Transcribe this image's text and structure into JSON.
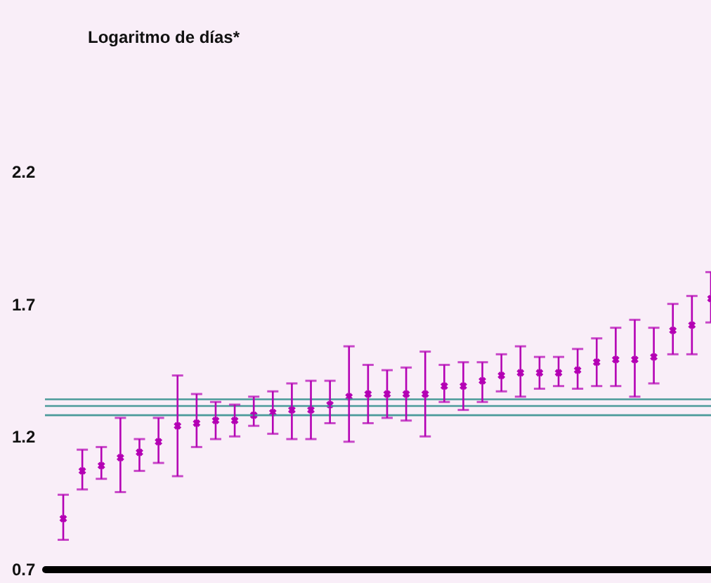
{
  "chart_data": {
    "type": "scatter",
    "title": "Logaritmo de días*",
    "categories": [
      null,
      null,
      null,
      null,
      null,
      null,
      null,
      null,
      null,
      null,
      null,
      null,
      null,
      null,
      null,
      null,
      null,
      null,
      null,
      null,
      null,
      null,
      null,
      null,
      null,
      null,
      null,
      null,
      null,
      null,
      null,
      null,
      null,
      null,
      null
    ],
    "series": [
      {
        "color": "#b400b4",
        "values": [
          0.89,
          1.07,
          1.09,
          1.12,
          1.14,
          1.18,
          1.24,
          1.25,
          1.26,
          1.26,
          1.28,
          1.29,
          1.3,
          1.3,
          1.32,
          1.35,
          1.36,
          1.36,
          1.36,
          1.36,
          1.39,
          1.39,
          1.41,
          1.43,
          1.44,
          1.44,
          1.44,
          1.45,
          1.48,
          1.49,
          1.49,
          1.5,
          1.6,
          1.62,
          1.72
        ],
        "errors": [
          [
            0.81,
            0.98
          ],
          [
            1.0,
            1.15
          ],
          [
            1.04,
            1.16
          ],
          [
            0.99,
            1.27
          ],
          [
            1.07,
            1.19
          ],
          [
            1.1,
            1.27
          ],
          [
            1.05,
            1.43
          ],
          [
            1.16,
            1.36
          ],
          [
            1.19,
            1.33
          ],
          [
            1.2,
            1.32
          ],
          [
            1.24,
            1.35
          ],
          [
            1.21,
            1.37
          ],
          [
            1.19,
            1.4
          ],
          [
            1.19,
            1.41
          ],
          [
            1.25,
            1.41
          ],
          [
            1.18,
            1.54
          ],
          [
            1.25,
            1.47
          ],
          [
            1.27,
            1.45
          ],
          [
            1.26,
            1.46
          ],
          [
            1.2,
            1.52
          ],
          [
            1.33,
            1.47
          ],
          [
            1.3,
            1.48
          ],
          [
            1.33,
            1.48
          ],
          [
            1.37,
            1.51
          ],
          [
            1.35,
            1.54
          ],
          [
            1.38,
            1.5
          ],
          [
            1.39,
            1.5
          ],
          [
            1.38,
            1.53
          ],
          [
            1.39,
            1.57
          ],
          [
            1.39,
            1.61
          ],
          [
            1.35,
            1.64
          ],
          [
            1.4,
            1.61
          ],
          [
            1.51,
            1.7
          ],
          [
            1.51,
            1.73
          ],
          [
            1.63,
            1.82
          ]
        ]
      }
    ],
    "ylim": [
      0.7,
      2.2
    ],
    "yticks": [
      0.7,
      1.2,
      1.7,
      2.2
    ],
    "ref_lines": [
      {
        "axis": "y",
        "value": 1.34,
        "color": "#4a9a9a"
      },
      {
        "axis": "y",
        "value": 1.315,
        "color": "#4a9a9a"
      },
      {
        "axis": "y",
        "value": 1.28,
        "color": "#4a9a9a"
      }
    ],
    "marker": "cross",
    "tick_labels": "y",
    "grid": false
  }
}
